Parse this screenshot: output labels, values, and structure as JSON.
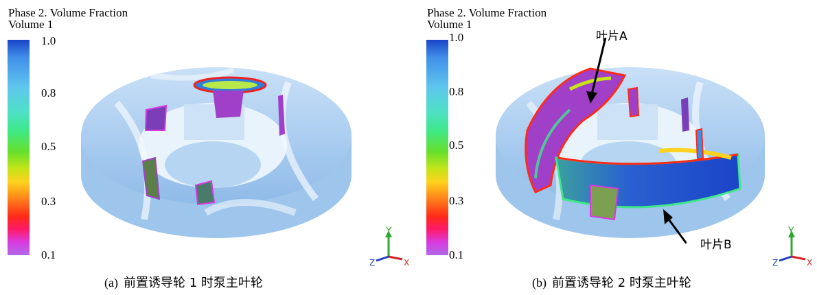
{
  "legend": {
    "title_line1": "Phase 2. Volume Fraction",
    "title_line2": "Volume 1",
    "ticks": [
      "1.0",
      "0.8",
      "0.5",
      "0.3",
      "0.1"
    ]
  },
  "panel_a": {
    "caption_label": "(a)",
    "caption_text": "前置诱导轮 1 时泵主叶轮"
  },
  "panel_b": {
    "caption_label": "(b)",
    "caption_text": "前置诱导轮 2 时泵主叶轮",
    "annotation_a": "叶片A",
    "annotation_b": "叶片B"
  },
  "axes": {
    "y": "Y",
    "z": "Z",
    "x": "X"
  },
  "colors": {
    "impeller_body": "#a9cdf2",
    "scale_top": "#1a44c8",
    "scale_bottom": "#b06ae8",
    "axis_y": "#2fa82f",
    "axis_x": "#d82020",
    "axis_z": "#2040c0"
  }
}
